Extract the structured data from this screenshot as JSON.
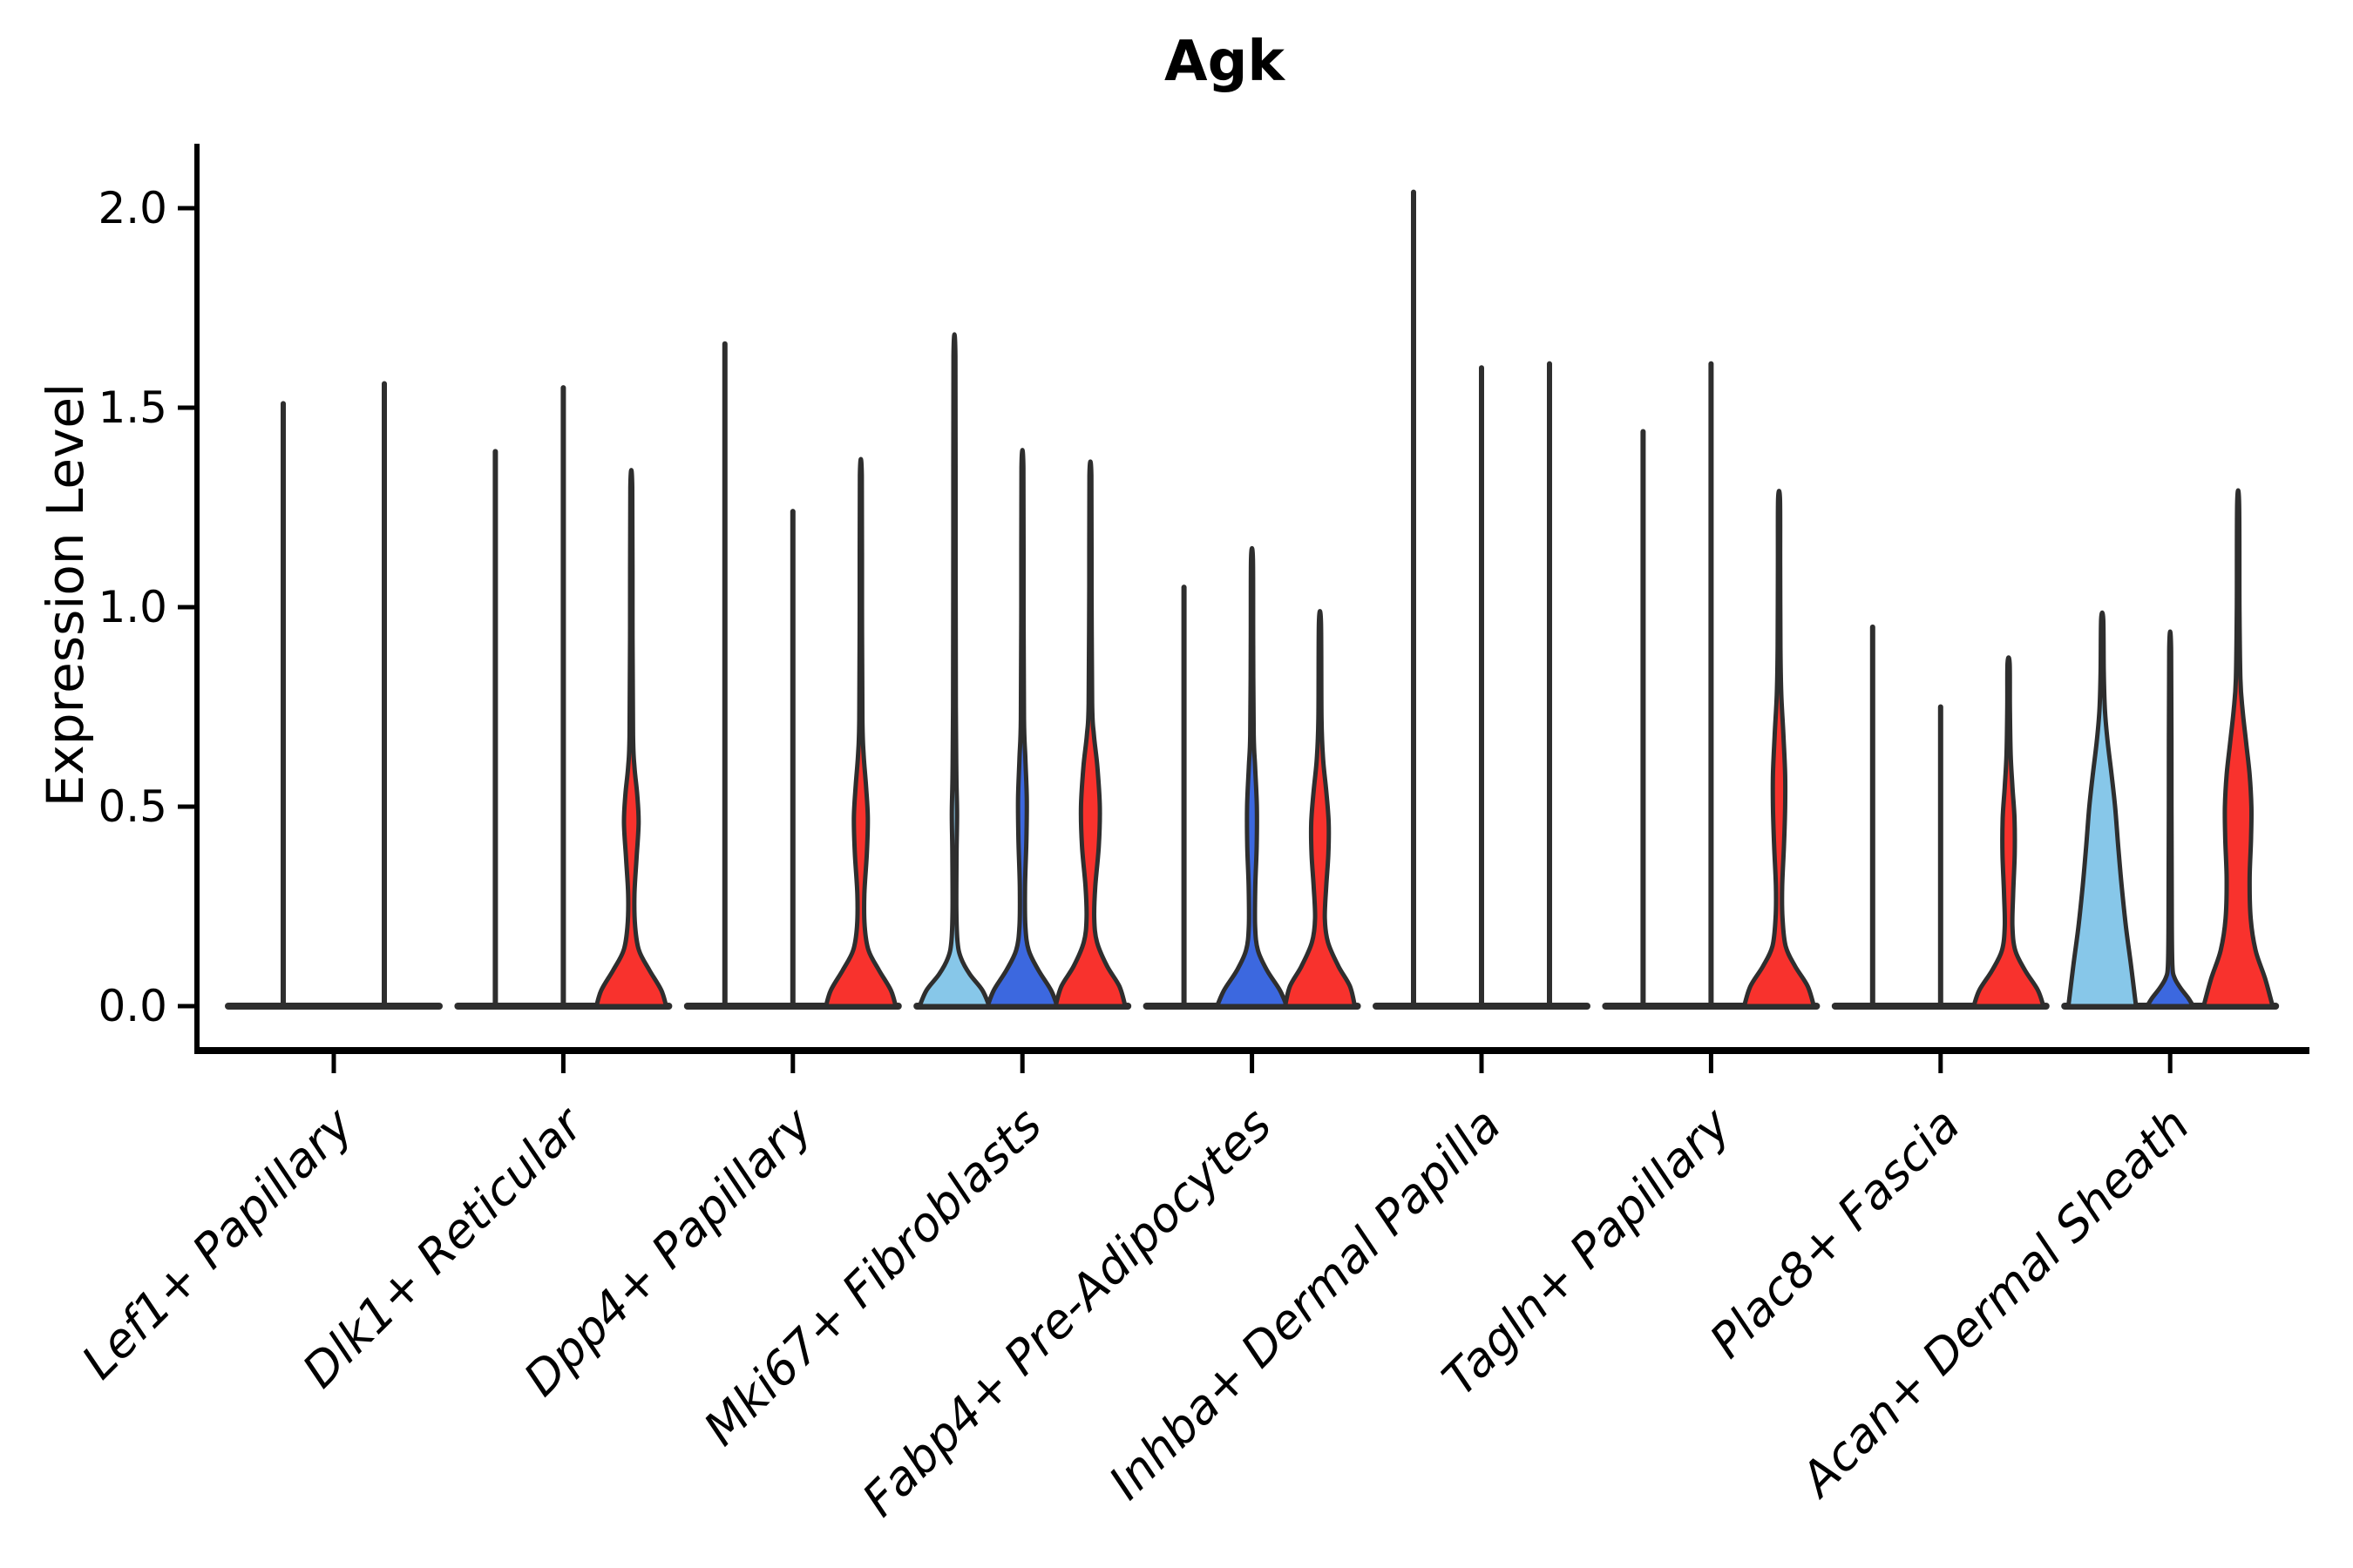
{
  "chart_data": {
    "type": "violin",
    "title": "Agk",
    "ylabel": "Expression Level",
    "xlabel": "",
    "yticks": [
      0.0,
      0.5,
      1.0,
      1.5,
      2.0
    ],
    "ytick_labels": [
      "0.0",
      "0.5",
      "1.0",
      "1.5",
      "2.0"
    ],
    "ylim": [
      -0.11,
      2.16
    ],
    "grid": false,
    "legend": null,
    "palette": {
      "lightblue": "#87C7E9",
      "blue": "#3C68DF",
      "red": "#F8322D",
      "outline": "#2E2E2E"
    },
    "description": "Split violin plot of Agk expression per fibroblast cell type; most violins collapse to a thin spike at 0 with a single tail; filled violins show density bodies near 0 with a mid bulge.",
    "categories": [
      {
        "label": "Lef1+ Papillary",
        "violins": [
          {
            "group": "unknown-1",
            "style": "spike",
            "max_expression": 1.51
          },
          {
            "group": "unknown-2",
            "style": "spike",
            "max_expression": 1.56
          }
        ]
      },
      {
        "label": "Dlk1+ Reticular",
        "violins": [
          {
            "group": "lightblue",
            "style": "spike",
            "max_expression": 1.39
          },
          {
            "group": "blue",
            "style": "spike",
            "max_expression": 1.55
          },
          {
            "group": "red",
            "style": "body",
            "max_expression": 1.3,
            "profile": [
              [
                0,
                1
              ],
              [
                0.04,
                0.86
              ],
              [
                0.09,
                0.52
              ],
              [
                0.14,
                0.22
              ],
              [
                0.2,
                0.11
              ],
              [
                0.28,
                0.09
              ],
              [
                0.37,
                0.15
              ],
              [
                0.46,
                0.21
              ],
              [
                0.53,
                0.17
              ],
              [
                0.6,
                0.09
              ],
              [
                0.68,
                0.05
              ],
              [
                0.95,
                0.035
              ],
              [
                1.3,
                0.028
              ]
            ]
          }
        ]
      },
      {
        "label": "Dpp4+ Papillary",
        "violins": [
          {
            "group": "lightblue",
            "style": "spike",
            "max_expression": 1.66
          },
          {
            "group": "blue",
            "style": "spike",
            "max_expression": 1.24
          },
          {
            "group": "red",
            "style": "body",
            "max_expression": 1.33,
            "profile": [
              [
                0,
                1
              ],
              [
                0.04,
                0.86
              ],
              [
                0.09,
                0.52
              ],
              [
                0.14,
                0.22
              ],
              [
                0.2,
                0.11
              ],
              [
                0.28,
                0.1
              ],
              [
                0.38,
                0.17
              ],
              [
                0.47,
                0.2
              ],
              [
                0.55,
                0.15
              ],
              [
                0.63,
                0.08
              ],
              [
                0.72,
                0.045
              ],
              [
                1.0,
                0.032
              ],
              [
                1.33,
                0.028
              ]
            ]
          }
        ]
      },
      {
        "label": "Mki67+ Fibroblasts",
        "violins": [
          {
            "group": "lightblue",
            "style": "body",
            "max_expression": 1.63,
            "profile": [
              [
                0,
                1
              ],
              [
                0.04,
                0.8
              ],
              [
                0.08,
                0.44
              ],
              [
                0.12,
                0.19
              ],
              [
                0.16,
                0.09
              ],
              [
                0.24,
                0.055
              ],
              [
                0.38,
                0.06
              ],
              [
                0.48,
                0.075
              ],
              [
                0.58,
                0.055
              ],
              [
                0.75,
                0.04
              ],
              [
                1.2,
                0.032
              ],
              [
                1.63,
                0.028
              ]
            ]
          },
          {
            "group": "blue",
            "style": "body",
            "max_expression": 1.35,
            "profile": [
              [
                0,
                1
              ],
              [
                0.04,
                0.82
              ],
              [
                0.09,
                0.46
              ],
              [
                0.14,
                0.18
              ],
              [
                0.2,
                0.085
              ],
              [
                0.3,
                0.075
              ],
              [
                0.42,
                0.115
              ],
              [
                0.52,
                0.125
              ],
              [
                0.62,
                0.085
              ],
              [
                0.72,
                0.045
              ],
              [
                1.0,
                0.033
              ],
              [
                1.35,
                0.028
              ]
            ]
          },
          {
            "group": "red",
            "style": "body",
            "max_expression": 1.33,
            "profile": [
              [
                0,
                1
              ],
              [
                0.05,
                0.83
              ],
              [
                0.1,
                0.48
              ],
              [
                0.16,
                0.19
              ],
              [
                0.22,
                0.11
              ],
              [
                0.3,
                0.14
              ],
              [
                0.4,
                0.24
              ],
              [
                0.5,
                0.27
              ],
              [
                0.6,
                0.2
              ],
              [
                0.68,
                0.1
              ],
              [
                0.76,
                0.05
              ],
              [
                1.05,
                0.033
              ],
              [
                1.33,
                0.028
              ]
            ]
          }
        ]
      },
      {
        "label": "Fabp4+ Pre-Adipocytes",
        "violins": [
          {
            "group": "lightblue",
            "style": "spike",
            "max_expression": 1.05
          },
          {
            "group": "blue",
            "style": "body",
            "max_expression": 1.12,
            "profile": [
              [
                0,
                1
              ],
              [
                0.04,
                0.8
              ],
              [
                0.09,
                0.43
              ],
              [
                0.14,
                0.17
              ],
              [
                0.2,
                0.09
              ],
              [
                0.3,
                0.095
              ],
              [
                0.4,
                0.135
              ],
              [
                0.5,
                0.14
              ],
              [
                0.6,
                0.09
              ],
              [
                0.68,
                0.05
              ],
              [
                0.9,
                0.034
              ],
              [
                1.12,
                0.028
              ]
            ]
          },
          {
            "group": "red",
            "style": "body",
            "max_expression": 0.96,
            "profile": [
              [
                0,
                1
              ],
              [
                0.05,
                0.86
              ],
              [
                0.1,
                0.53
              ],
              [
                0.16,
                0.23
              ],
              [
                0.22,
                0.14
              ],
              [
                0.3,
                0.18
              ],
              [
                0.38,
                0.24
              ],
              [
                0.46,
                0.25
              ],
              [
                0.54,
                0.18
              ],
              [
                0.62,
                0.09
              ],
              [
                0.72,
                0.045
              ],
              [
                0.96,
                0.03
              ]
            ]
          }
        ]
      },
      {
        "label": "Inhba+ Dermal Papilla",
        "violins": [
          {
            "group": "lightblue",
            "style": "spike",
            "max_expression": 2.04
          },
          {
            "group": "blue",
            "style": "spike",
            "max_expression": 1.6
          },
          {
            "group": "red",
            "style": "spike",
            "max_expression": 1.61
          }
        ]
      },
      {
        "label": "Tagln+ Papillary",
        "violins": [
          {
            "group": "lightblue",
            "style": "spike",
            "max_expression": 1.44
          },
          {
            "group": "blue",
            "style": "spike",
            "max_expression": 1.61
          },
          {
            "group": "red",
            "style": "body",
            "max_expression": 1.27,
            "profile": [
              [
                0,
                1
              ],
              [
                0.05,
                0.82
              ],
              [
                0.1,
                0.46
              ],
              [
                0.15,
                0.19
              ],
              [
                0.22,
                0.1
              ],
              [
                0.3,
                0.09
              ],
              [
                0.4,
                0.14
              ],
              [
                0.5,
                0.175
              ],
              [
                0.58,
                0.175
              ],
              [
                0.68,
                0.125
              ],
              [
                0.78,
                0.065
              ],
              [
                0.9,
                0.04
              ],
              [
                1.1,
                0.032
              ],
              [
                1.27,
                0.028
              ]
            ]
          }
        ]
      },
      {
        "label": "Plac8+ Fascia",
        "violins": [
          {
            "group": "lightblue",
            "style": "spike",
            "max_expression": 0.95
          },
          {
            "group": "blue",
            "style": "spike",
            "max_expression": 0.75
          },
          {
            "group": "red",
            "style": "body",
            "max_expression": 0.86,
            "profile": [
              [
                0,
                1
              ],
              [
                0.04,
                0.84
              ],
              [
                0.09,
                0.47
              ],
              [
                0.14,
                0.19
              ],
              [
                0.2,
                0.11
              ],
              [
                0.28,
                0.13
              ],
              [
                0.38,
                0.175
              ],
              [
                0.47,
                0.17
              ],
              [
                0.55,
                0.11
              ],
              [
                0.63,
                0.06
              ],
              [
                0.75,
                0.038
              ],
              [
                0.86,
                0.03
              ]
            ]
          }
        ]
      },
      {
        "label": "Acan+ Dermal Sheath",
        "violins": [
          {
            "group": "lightblue",
            "style": "body",
            "max_expression": 0.97,
            "profile": [
              [
                0,
                0.97
              ],
              [
                0.1,
                0.83
              ],
              [
                0.2,
                0.68
              ],
              [
                0.3,
                0.56
              ],
              [
                0.4,
                0.46
              ],
              [
                0.5,
                0.37
              ],
              [
                0.58,
                0.27
              ],
              [
                0.66,
                0.16
              ],
              [
                0.74,
                0.08
              ],
              [
                0.84,
                0.045
              ],
              [
                0.97,
                0.03
              ]
            ]
          },
          {
            "group": "blue",
            "style": "body",
            "max_expression": 0.89,
            "profile": [
              [
                0,
                0.66
              ],
              [
                0.02,
                0.52
              ],
              [
                0.045,
                0.3
              ],
              [
                0.07,
                0.13
              ],
              [
                0.1,
                0.065
              ],
              [
                0.2,
                0.048
              ],
              [
                0.5,
                0.038
              ],
              [
                0.89,
                0.028
              ]
            ]
          },
          {
            "group": "red",
            "style": "body",
            "max_expression": 1.26,
            "profile": [
              [
                0,
                0.99
              ],
              [
                0.07,
                0.77
              ],
              [
                0.14,
                0.5
              ],
              [
                0.22,
                0.36
              ],
              [
                0.32,
                0.33
              ],
              [
                0.42,
                0.37
              ],
              [
                0.5,
                0.38
              ],
              [
                0.58,
                0.33
              ],
              [
                0.66,
                0.23
              ],
              [
                0.74,
                0.13
              ],
              [
                0.82,
                0.065
              ],
              [
                1.0,
                0.038
              ],
              [
                1.26,
                0.028
              ]
            ]
          }
        ]
      }
    ]
  }
}
